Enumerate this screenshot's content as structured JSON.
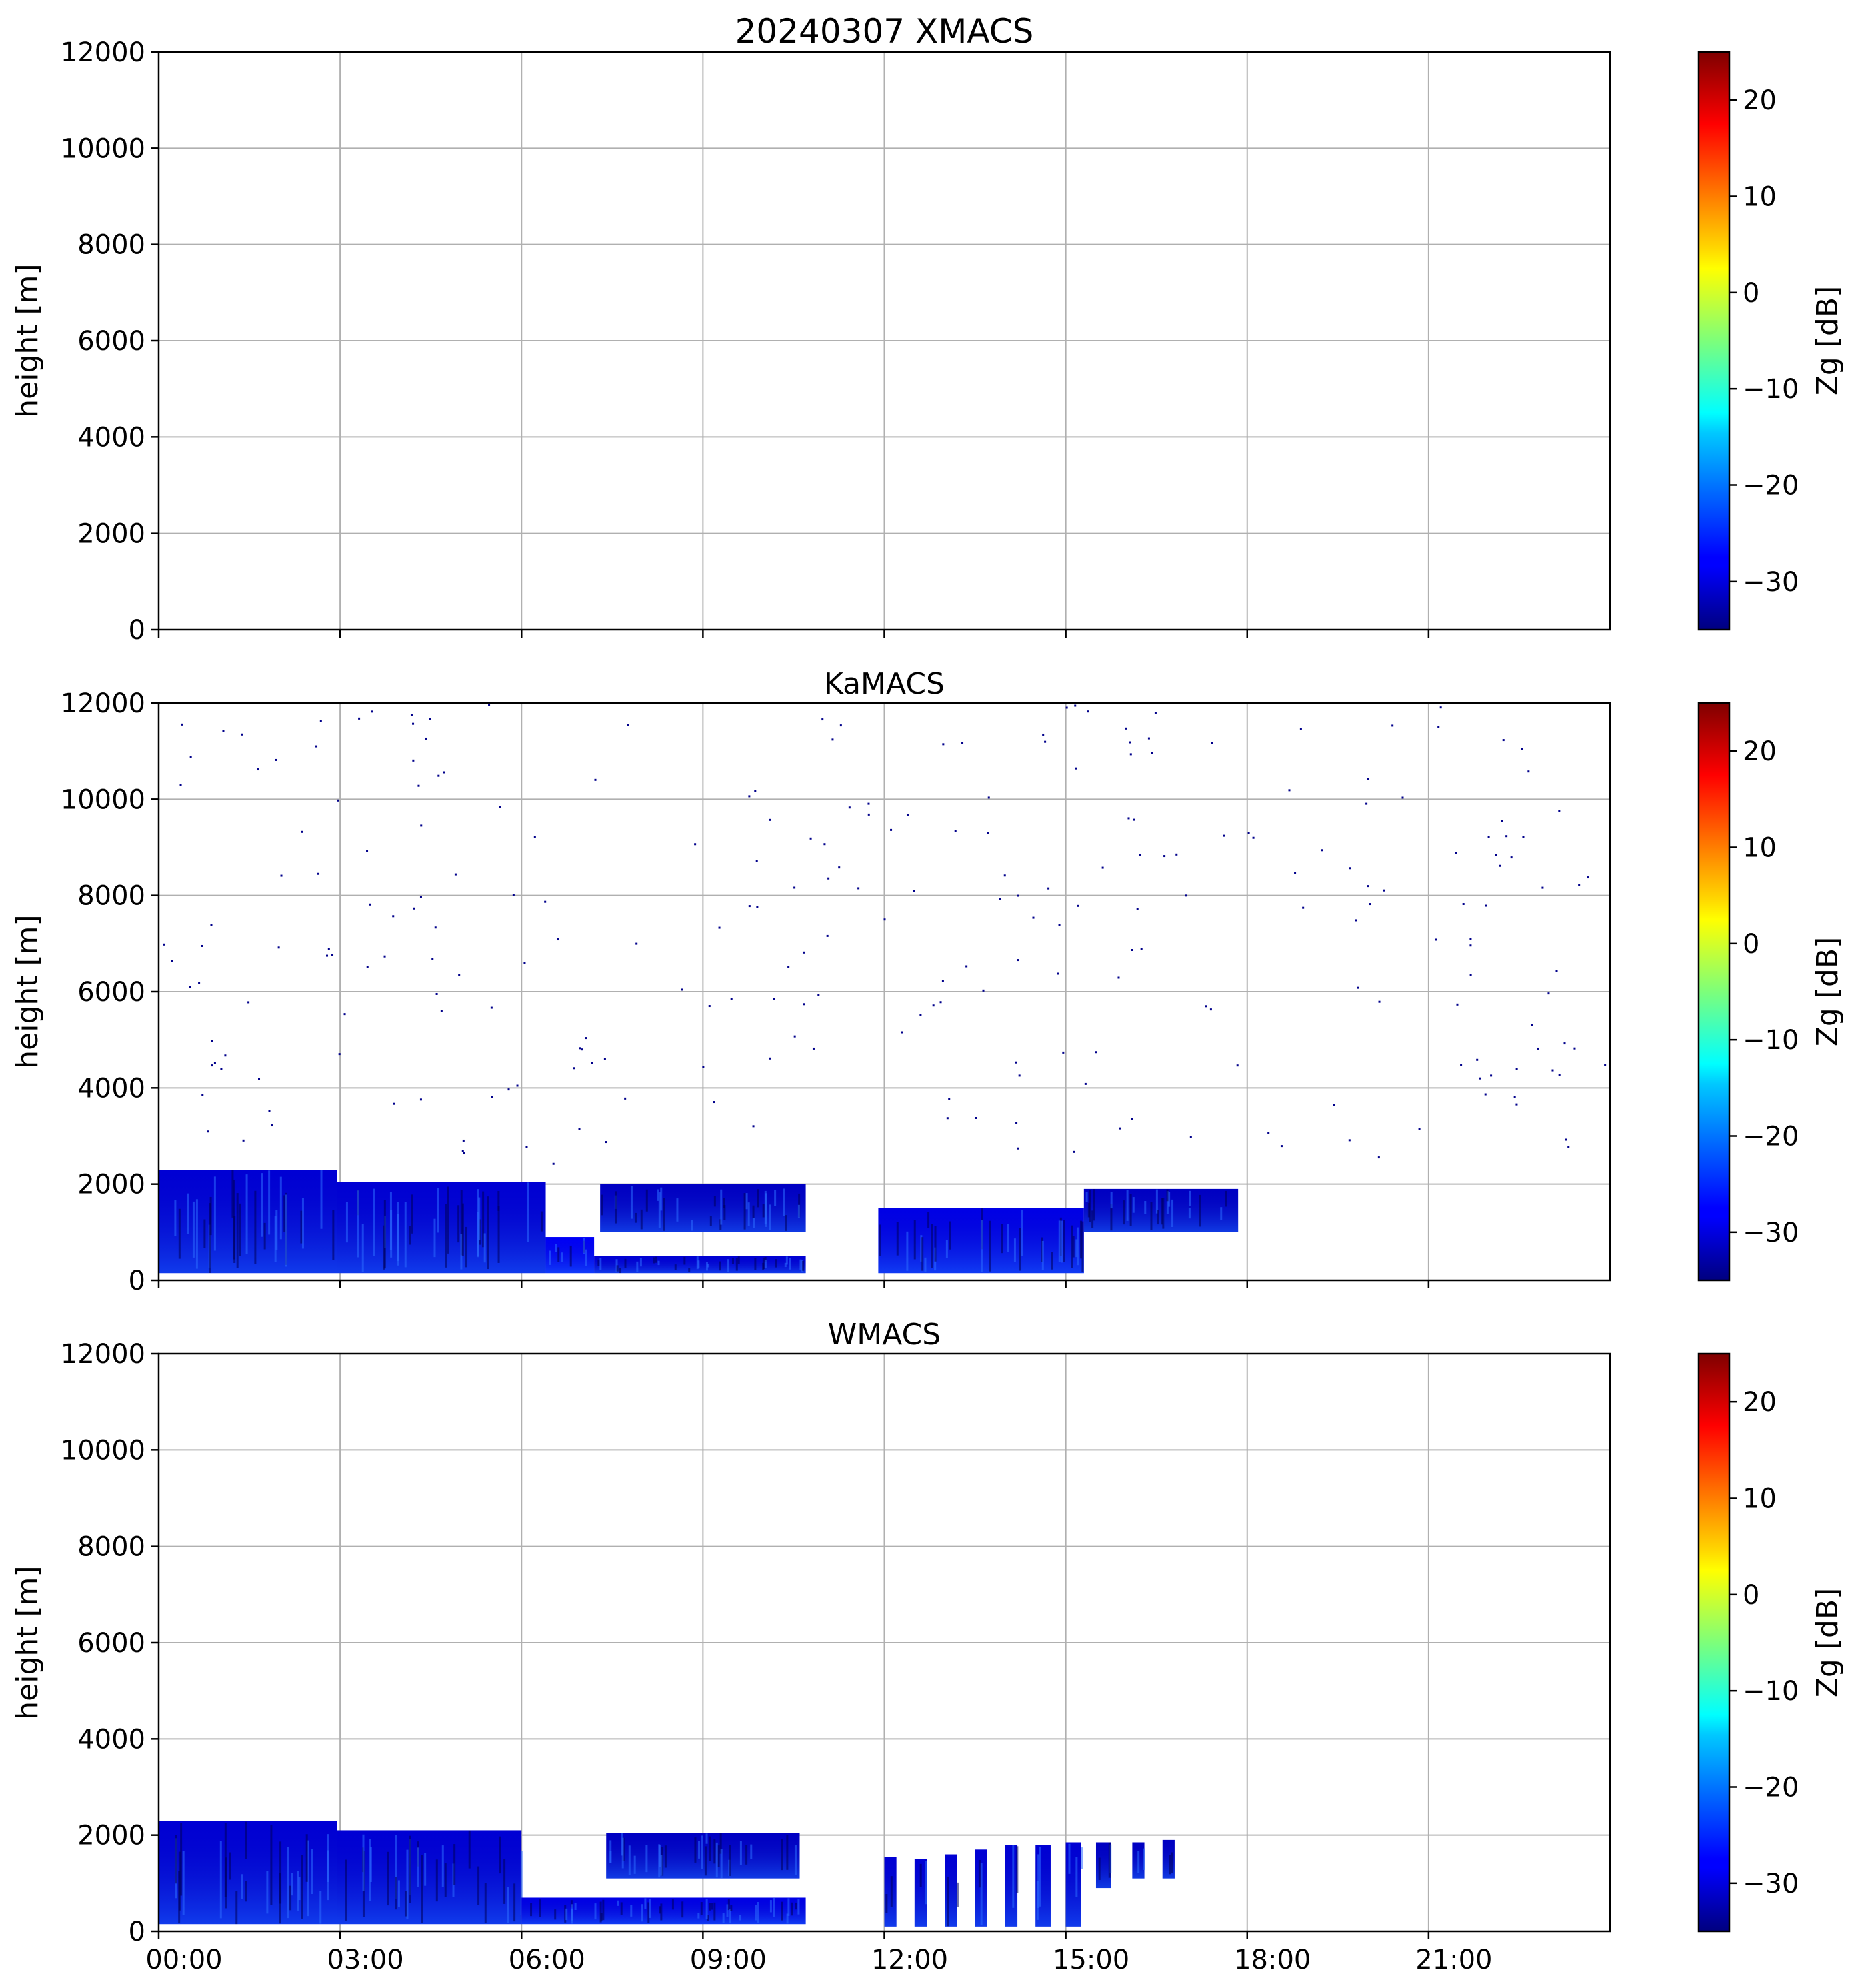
{
  "chart_data": [
    {
      "type": "heatmap",
      "title": "20240307 XMACS",
      "xlabel": "",
      "ylabel": "height [m]",
      "xlim": [
        "00:00",
        "24:00"
      ],
      "ylim": [
        0,
        12000
      ],
      "x_ticks": [],
      "y_ticks": [
        "0",
        "2000",
        "4000",
        "6000",
        "8000",
        "10000",
        "12000"
      ],
      "grid": true,
      "colorbar": {
        "label": "Zg [dB]",
        "range": [
          -35,
          25
        ],
        "ticks": [
          "−30",
          "−20",
          "−10",
          "0",
          "10",
          "20"
        ],
        "colormap": "jet"
      },
      "regions": []
    },
    {
      "type": "heatmap",
      "title": "KaMACS",
      "xlabel": "",
      "ylabel": "height [m]",
      "xlim": [
        "00:00",
        "24:00"
      ],
      "ylim": [
        0,
        12000
      ],
      "x_ticks": [],
      "y_ticks": [
        "0",
        "2000",
        "4000",
        "6000",
        "8000",
        "10000",
        "12000"
      ],
      "grid": true,
      "colorbar": {
        "label": "Zg [dB]",
        "range": [
          -35,
          25
        ],
        "ticks": [
          "−30",
          "−20",
          "−10",
          "0",
          "10",
          "20"
        ],
        "colormap": "jet"
      },
      "regions": [
        {
          "t0": 0.0,
          "t1": 2.95,
          "h0": 150,
          "h1": 2300,
          "zg": -30
        },
        {
          "t0": 2.95,
          "t1": 6.4,
          "h0": 150,
          "h1": 2050,
          "zg": -30
        },
        {
          "t0": 6.4,
          "t1": 7.2,
          "h0": 150,
          "h1": 900,
          "zg": -28
        },
        {
          "t0": 7.2,
          "t1": 10.7,
          "h0": 150,
          "h1": 500,
          "zg": -30
        },
        {
          "t0": 7.3,
          "t1": 10.7,
          "h0": 1000,
          "h1": 2000,
          "zg": -31
        },
        {
          "t0": 11.9,
          "t1": 15.3,
          "h0": 150,
          "h1": 1500,
          "zg": -29
        },
        {
          "t0": 15.3,
          "t1": 17.85,
          "h0": 1000,
          "h1": 1900,
          "zg": -31
        }
      ]
    },
    {
      "type": "heatmap",
      "title": "WMACS",
      "xlabel": "",
      "ylabel": "height [m]",
      "xlim": [
        "00:00",
        "24:00"
      ],
      "ylim": [
        0,
        12000
      ],
      "x_ticks": [
        "00:00",
        "03:00",
        "06:00",
        "09:00",
        "12:00",
        "15:00",
        "18:00",
        "21:00"
      ],
      "y_ticks": [
        "0",
        "2000",
        "4000",
        "6000",
        "8000",
        "10000",
        "12000"
      ],
      "grid": true,
      "colorbar": {
        "label": "Zg [dB]",
        "range": [
          -35,
          25
        ],
        "ticks": [
          "−30",
          "−20",
          "−10",
          "0",
          "10",
          "20"
        ],
        "colormap": "jet"
      },
      "regions": [
        {
          "t0": 0.0,
          "t1": 2.95,
          "h0": 150,
          "h1": 2300,
          "zg": -30
        },
        {
          "t0": 2.95,
          "t1": 6.0,
          "h0": 150,
          "h1": 2100,
          "zg": -30
        },
        {
          "t0": 6.0,
          "t1": 10.7,
          "h0": 150,
          "h1": 700,
          "zg": -29
        },
        {
          "t0": 7.4,
          "t1": 10.6,
          "h0": 1100,
          "h1": 2050,
          "zg": -31
        },
        {
          "t0": 12.0,
          "t1": 12.2,
          "h0": 100,
          "h1": 1550,
          "zg": -30
        },
        {
          "t0": 12.5,
          "t1": 12.7,
          "h0": 100,
          "h1": 1500,
          "zg": -30
        },
        {
          "t0": 13.0,
          "t1": 13.2,
          "h0": 100,
          "h1": 1600,
          "zg": -30
        },
        {
          "t0": 13.5,
          "t1": 13.7,
          "h0": 100,
          "h1": 1700,
          "zg": -30
        },
        {
          "t0": 14.0,
          "t1": 14.2,
          "h0": 100,
          "h1": 1800,
          "zg": -30
        },
        {
          "t0": 14.5,
          "t1": 14.75,
          "h0": 100,
          "h1": 1800,
          "zg": -30
        },
        {
          "t0": 15.0,
          "t1": 15.25,
          "h0": 100,
          "h1": 1850,
          "zg": -30
        },
        {
          "t0": 15.5,
          "t1": 15.75,
          "h0": 900,
          "h1": 1850,
          "zg": -31
        },
        {
          "t0": 16.1,
          "t1": 16.3,
          "h0": 1100,
          "h1": 1850,
          "zg": -31
        },
        {
          "t0": 16.6,
          "t1": 16.8,
          "h0": 1100,
          "h1": 1900,
          "zg": -31
        }
      ]
    }
  ]
}
